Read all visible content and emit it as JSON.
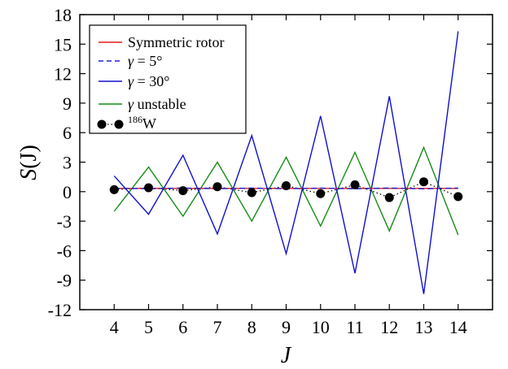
{
  "chart_data": {
    "type": "line",
    "xlabel": "J",
    "ylabel_main": "S",
    "ylabel_arg": "(J)",
    "xlim": [
      3,
      15
    ],
    "ylim": [
      -12,
      18
    ],
    "x_ticks": [
      4,
      5,
      6,
      7,
      8,
      9,
      10,
      11,
      12,
      13,
      14
    ],
    "y_ticks": [
      -12,
      -9,
      -6,
      -3,
      0,
      3,
      6,
      9,
      12,
      15,
      18
    ],
    "x": [
      4,
      5,
      6,
      7,
      8,
      9,
      10,
      11,
      12,
      13,
      14
    ],
    "legend_position": "top-left",
    "series": [
      {
        "key": "symmetric",
        "name": "Symmetric rotor",
        "color": "#e41a1c",
        "style": "solid",
        "values": [
          0.33,
          0.33,
          0.33,
          0.33,
          0.33,
          0.33,
          0.33,
          0.33,
          0.33,
          0.33,
          0.33
        ]
      },
      {
        "key": "gamma5",
        "name_greek": "γ",
        "name_rest": " = 5°",
        "color": "#1f1fd0",
        "style": "dashed",
        "values": [
          0.35,
          0.3,
          0.37,
          0.3,
          0.36,
          0.3,
          0.36,
          0.29,
          0.37,
          0.29,
          0.37
        ]
      },
      {
        "key": "gamma30",
        "name_greek": "γ",
        "name_rest": " = 30°",
        "color": "#1010cc",
        "style": "solid",
        "values": [
          1.6,
          -2.3,
          3.7,
          -4.3,
          5.7,
          -6.3,
          7.7,
          -8.3,
          9.7,
          -10.4,
          16.3
        ]
      },
      {
        "key": "unstable",
        "name_greek": "γ",
        "name_rest": " unstable",
        "color": "#168c16",
        "style": "solid",
        "values": [
          -2.0,
          2.5,
          -2.5,
          3.0,
          -3.0,
          3.5,
          -3.5,
          4.0,
          -4.0,
          4.5,
          -4.4
        ]
      },
      {
        "key": "w186",
        "name_sup": "186",
        "name_rest": "W",
        "color": "#000000",
        "style": "dotted-markers",
        "values": [
          0.2,
          0.4,
          0.1,
          0.5,
          -0.1,
          0.6,
          -0.2,
          0.7,
          -0.6,
          1.0,
          -0.5
        ]
      }
    ]
  }
}
